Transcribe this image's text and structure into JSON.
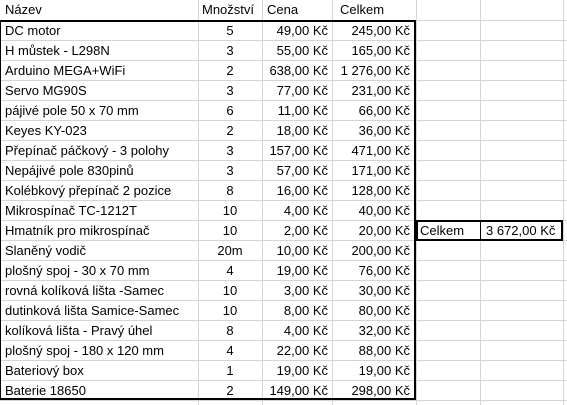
{
  "headers": {
    "name": "Název",
    "qty": "Množství",
    "price": "Cena",
    "total": "Celkem"
  },
  "rows": [
    {
      "name": "DC motor",
      "qty": "5",
      "price": "49,00 Kč",
      "total": "245,00 Kč"
    },
    {
      "name": "H můstek - L298N",
      "qty": "3",
      "price": "55,00 Kč",
      "total": "165,00 Kč"
    },
    {
      "name": "Arduino MEGA+WiFi",
      "qty": "2",
      "price": "638,00 Kč",
      "total": "1 276,00 Kč"
    },
    {
      "name": "Servo MG90S",
      "qty": "3",
      "price": "77,00 Kč",
      "total": "231,00 Kč"
    },
    {
      "name": "pájivé pole 50 x 70 mm",
      "qty": "6",
      "price": "11,00 Kč",
      "total": "66,00 Kč"
    },
    {
      "name": "Keyes KY-023",
      "qty": "2",
      "price": "18,00 Kč",
      "total": "36,00 Kč"
    },
    {
      "name": "Přepínač páčkový - 3 polohy",
      "qty": "3",
      "price": "157,00 Kč",
      "total": "471,00 Kč"
    },
    {
      "name": "Nepájivé pole 830pinů",
      "qty": "3",
      "price": "57,00 Kč",
      "total": "171,00 Kč"
    },
    {
      "name": "Kolébkový přepínač 2 pozice",
      "qty": "8",
      "price": "16,00 Kč",
      "total": "128,00 Kč"
    },
    {
      "name": "Mikrospínač TC-1212T",
      "qty": "10",
      "price": "4,00 Kč",
      "total": "40,00 Kč"
    },
    {
      "name": "Hmatník pro mikrospínač",
      "qty": "10",
      "price": "2,00 Kč",
      "total": "20,00 Kč"
    },
    {
      "name": "Slaněný vodič",
      "qty": "20m",
      "price": "10,00 Kč",
      "total": "200,00 Kč"
    },
    {
      "name": "plošný spoj - 30 x 70 mm",
      "qty": "4",
      "price": "19,00 Kč",
      "total": "76,00 Kč"
    },
    {
      "name": "rovná kolíková lišta -Samec",
      "qty": "10",
      "price": "3,00 Kč",
      "total": "30,00 Kč"
    },
    {
      "name": "dutinková lišta Samice-Samec",
      "qty": "10",
      "price": "8,00 Kč",
      "total": "80,00 Kč"
    },
    {
      "name": "kolíková lišta - Pravý úhel",
      "qty": "8",
      "price": "4,00 Kč",
      "total": "32,00 Kč"
    },
    {
      "name": "plošný spoj - 180 x 120 mm",
      "qty": "4",
      "price": "22,00 Kč",
      "total": "88,00 Kč"
    },
    {
      "name": "Bateriový box",
      "qty": "1",
      "price": "19,00 Kč",
      "total": "19,00 Kč"
    },
    {
      "name": "Baterie 18650",
      "qty": "2",
      "price": "149,00 Kč",
      "total": "298,00 Kč"
    }
  ],
  "summary": {
    "label": "Celkem",
    "value": "3 672,00 Kč"
  },
  "colors": {
    "gridline": "#d4d4d4",
    "border": "#000000",
    "text": "#000000",
    "background": "#ffffff"
  }
}
